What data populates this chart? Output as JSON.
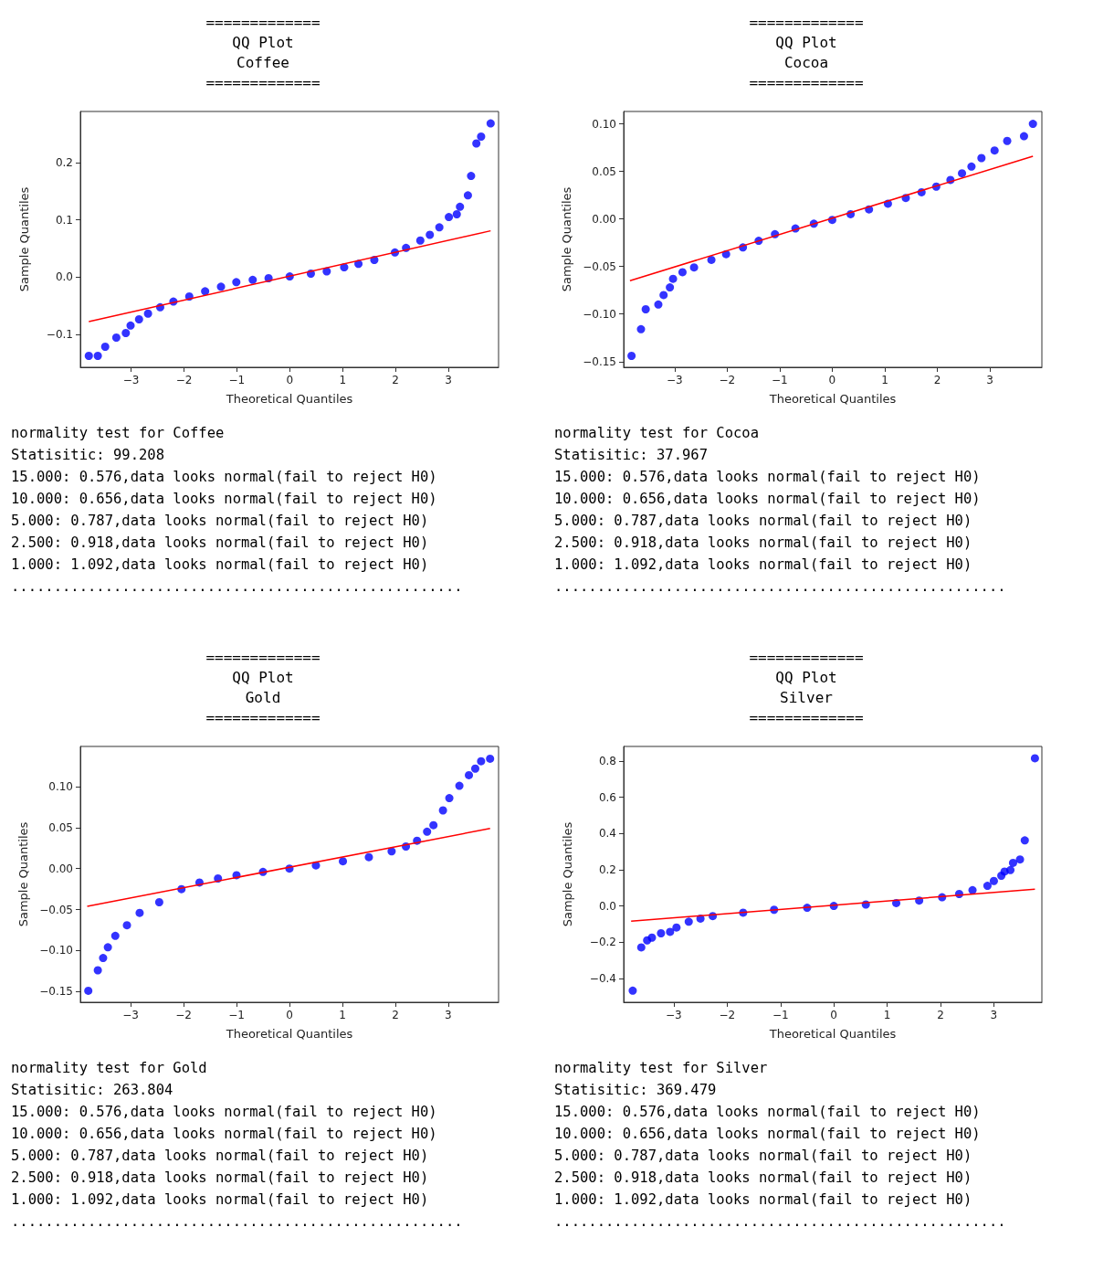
{
  "chart_data": [
    {
      "type": "scatter",
      "title": "=============\nQQ Plot\nCoffee\n=============",
      "xlabel": "Theoretical Quantiles",
      "ylabel": "Sample Quantiles",
      "xlim": [
        -3.96,
        3.95
      ],
      "xticks": [
        {
          "value": -3,
          "label": "−3"
        },
        {
          "value": -2,
          "label": "−2"
        },
        {
          "value": -1,
          "label": "−1"
        },
        0,
        1,
        2,
        3
      ],
      "ylim": [
        -0.158,
        0.29
      ],
      "yticks": [
        {
          "value": -0.1,
          "label": "−0.1"
        },
        {
          "value": 0,
          "label": "0.0"
        },
        0.1,
        0.2
      ],
      "series": [
        {
          "marker": "circle",
          "color": "#0000ff",
          "x": [
            -3.8,
            -3.63,
            -3.49,
            -3.28,
            -3.1,
            -3.01,
            -2.85,
            -2.68,
            -2.45,
            -2.2,
            -1.9,
            -1.6,
            -1.3,
            -1.01,
            -0.7,
            -0.4,
            0,
            0.4,
            0.7,
            1.03,
            1.3,
            1.6,
            1.99,
            2.2,
            2.47,
            2.65,
            2.83,
            3.01,
            3.16,
            3.22,
            3.37,
            3.43,
            3.53,
            3.62,
            3.8
          ],
          "values": [
            -0.138,
            -0.138,
            -0.122,
            -0.106,
            -0.098,
            -0.085,
            -0.074,
            -0.064,
            -0.053,
            -0.043,
            -0.034,
            -0.025,
            -0.017,
            -0.009,
            -0.005,
            -0.002,
            0.001,
            0.006,
            0.01,
            0.017,
            0.023,
            0.03,
            0.043,
            0.051,
            0.064,
            0.074,
            0.087,
            0.105,
            0.11,
            0.123,
            0.143,
            0.177,
            0.234,
            0.246,
            0.269
          ]
        },
        {
          "type": "line",
          "marker": "none",
          "color": "#ff0000",
          "x": [
            -3.8,
            3.8
          ],
          "values": [
            -0.078,
            0.081
          ]
        }
      ],
      "annotations": [
        "normality test for Coffee",
        "Statisitic: 99.208",
        "15.000: 0.576,data looks normal(fail to reject H0)",
        "10.000: 0.656,data looks normal(fail to reject H0)",
        "5.000: 0.787,data looks normal(fail to reject H0)",
        "2.500: 0.918,data looks normal(fail to reject H0)",
        "1.000: 1.092,data looks normal(fail to reject H0)",
        "....................................................."
      ]
    },
    {
      "type": "scatter",
      "title": "=============\nQQ Plot\nCocoa\n=============",
      "xlabel": "Theoretical Quantiles",
      "ylabel": "Sample Quantiles",
      "xlim": [
        -3.97,
        3.99
      ],
      "xticks": [
        {
          "value": -3,
          "label": "−3"
        },
        {
          "value": -2,
          "label": "−2"
        },
        {
          "value": -1,
          "label": "−1"
        },
        0,
        1,
        2,
        3
      ],
      "ylim": [
        -0.156,
        0.113
      ],
      "yticks": [
        {
          "value": -0.15,
          "label": "−0.15"
        },
        {
          "value": -0.1,
          "label": "−0.10"
        },
        {
          "value": -0.05,
          "label": "−0.05"
        },
        {
          "value": 0,
          "label": "0.00"
        },
        {
          "value": 0.05,
          "label": "0.05"
        },
        {
          "value": 0.1,
          "label": "0.10"
        }
      ],
      "series": [
        {
          "marker": "circle",
          "color": "#0000ff",
          "x": [
            -3.82,
            -3.64,
            -3.55,
            -3.31,
            -3.21,
            -3.09,
            -3.03,
            -2.85,
            -2.63,
            -2.3,
            -2.02,
            -1.7,
            -1.4,
            -1.09,
            -0.7,
            -0.35,
            0,
            0.35,
            0.7,
            1.06,
            1.4,
            1.7,
            1.98,
            2.25,
            2.47,
            2.65,
            2.84,
            3.09,
            3.33,
            3.65,
            3.82
          ],
          "values": [
            -0.144,
            -0.116,
            -0.095,
            -0.09,
            -0.08,
            -0.072,
            -0.063,
            -0.056,
            -0.051,
            -0.043,
            -0.037,
            -0.03,
            -0.023,
            -0.016,
            -0.01,
            -0.005,
            -0.001,
            0.005,
            0.01,
            0.016,
            0.022,
            0.028,
            0.034,
            0.041,
            0.048,
            0.055,
            0.064,
            0.072,
            0.082,
            0.087,
            0.1
          ]
        },
        {
          "type": "line",
          "marker": "none",
          "color": "#ff0000",
          "x": [
            -3.85,
            3.82
          ],
          "values": [
            -0.065,
            0.066
          ]
        }
      ],
      "annotations": [
        "normality test for Cocoa",
        "Statisitic: 37.967",
        "15.000: 0.576,data looks normal(fail to reject H0)",
        "10.000: 0.656,data looks normal(fail to reject H0)",
        "5.000: 0.787,data looks normal(fail to reject H0)",
        "2.500: 0.918,data looks normal(fail to reject H0)",
        "1.000: 1.092,data looks normal(fail to reject H0)",
        "....................................................."
      ]
    },
    {
      "type": "scatter",
      "title": "=============\nQQ Plot\nGold\n=============",
      "xlabel": "Theoretical Quantiles",
      "ylabel": "Sample Quantiles",
      "xlim": [
        -3.95,
        3.95
      ],
      "xticks": [
        {
          "value": -3,
          "label": "−3"
        },
        {
          "value": -2,
          "label": "−2"
        },
        {
          "value": -1,
          "label": "−1"
        },
        0,
        1,
        2,
        3
      ],
      "ylim": [
        -0.163,
        0.149
      ],
      "yticks": [
        {
          "value": -0.15,
          "label": "−0.15"
        },
        {
          "value": -0.1,
          "label": "−0.10"
        },
        {
          "value": -0.05,
          "label": "−0.05"
        },
        {
          "value": 0,
          "label": "0.00"
        },
        {
          "value": 0.05,
          "label": "0.05"
        },
        {
          "value": 0.1,
          "label": "0.10"
        }
      ],
      "series": [
        {
          "marker": "circle",
          "color": "#0000ff",
          "x": [
            -3.8,
            -3.62,
            -3.52,
            -3.43,
            -3.29,
            -3.07,
            -2.83,
            -2.46,
            -2.04,
            -1.7,
            -1.35,
            -1,
            -0.5,
            0,
            0.5,
            1.01,
            1.5,
            1.93,
            2.2,
            2.41,
            2.6,
            2.72,
            2.9,
            3.02,
            3.21,
            3.39,
            3.51,
            3.62,
            3.79
          ],
          "values": [
            -0.149,
            -0.124,
            -0.109,
            -0.096,
            -0.082,
            -0.069,
            -0.054,
            -0.041,
            -0.025,
            -0.017,
            -0.012,
            -0.008,
            -0.004,
            0,
            0.004,
            0.009,
            0.014,
            0.021,
            0.027,
            0.034,
            0.045,
            0.053,
            0.071,
            0.086,
            0.101,
            0.114,
            0.122,
            0.131,
            0.134
          ]
        },
        {
          "type": "line",
          "marker": "none",
          "color": "#ff0000",
          "x": [
            -3.82,
            3.79
          ],
          "values": [
            -0.046,
            0.049
          ]
        }
      ],
      "annotations": [
        "normality test for Gold",
        "Statisitic: 263.804",
        "15.000: 0.576,data looks normal(fail to reject H0)",
        "10.000: 0.656,data looks normal(fail to reject H0)",
        "5.000: 0.787,data looks normal(fail to reject H0)",
        "2.500: 0.918,data looks normal(fail to reject H0)",
        "1.000: 1.092,data looks normal(fail to reject H0)",
        "....................................................."
      ]
    },
    {
      "type": "scatter",
      "title": "=============\nQQ Plot\nSilver\n=============",
      "xlabel": "Theoretical Quantiles",
      "ylabel": "Sample Quantiles",
      "xlim": [
        -3.94,
        3.9
      ],
      "xticks": [
        {
          "value": -3,
          "label": "−3"
        },
        {
          "value": -2,
          "label": "−2"
        },
        {
          "value": -1,
          "label": "−1"
        },
        0,
        1,
        2,
        3
      ],
      "ylim": [
        -0.532,
        0.881
      ],
      "yticks": [
        {
          "value": -0.4,
          "label": "−0.4"
        },
        {
          "value": -0.2,
          "label": "−0.2"
        },
        {
          "value": 0,
          "label": "0.0"
        },
        0.2,
        0.4,
        0.6,
        0.8
      ],
      "series": [
        {
          "marker": "circle",
          "color": "#0000ff",
          "x": [
            -3.77,
            -3.61,
            -3.5,
            -3.41,
            -3.24,
            -3.07,
            -2.95,
            -2.72,
            -2.5,
            -2.27,
            -1.7,
            -1.12,
            -0.5,
            0,
            0.6,
            1.17,
            1.6,
            2.03,
            2.35,
            2.6,
            2.88,
            3,
            3.14,
            3.2,
            3.31,
            3.36,
            3.49,
            3.58,
            3.77
          ],
          "values": [
            -0.468,
            -0.229,
            -0.19,
            -0.175,
            -0.151,
            -0.143,
            -0.119,
            -0.087,
            -0.07,
            -0.056,
            -0.037,
            -0.021,
            -0.01,
            0,
            0.008,
            0.016,
            0.03,
            0.048,
            0.066,
            0.087,
            0.111,
            0.138,
            0.167,
            0.19,
            0.198,
            0.238,
            0.257,
            0.362,
            0.816
          ]
        },
        {
          "type": "line",
          "marker": "none",
          "color": "#ff0000",
          "x": [
            -3.8,
            3.77
          ],
          "values": [
            -0.084,
            0.092
          ]
        }
      ],
      "annotations": [
        "normality test for Silver",
        "Statisitic: 369.479",
        "15.000: 0.576,data looks normal(fail to reject H0)",
        "10.000: 0.656,data looks normal(fail to reject H0)",
        "5.000: 0.787,data looks normal(fail to reject H0)",
        "2.500: 0.918,data looks normal(fail to reject H0)",
        "1.000: 1.092,data looks normal(fail to reject H0)",
        "....................................................."
      ]
    }
  ]
}
